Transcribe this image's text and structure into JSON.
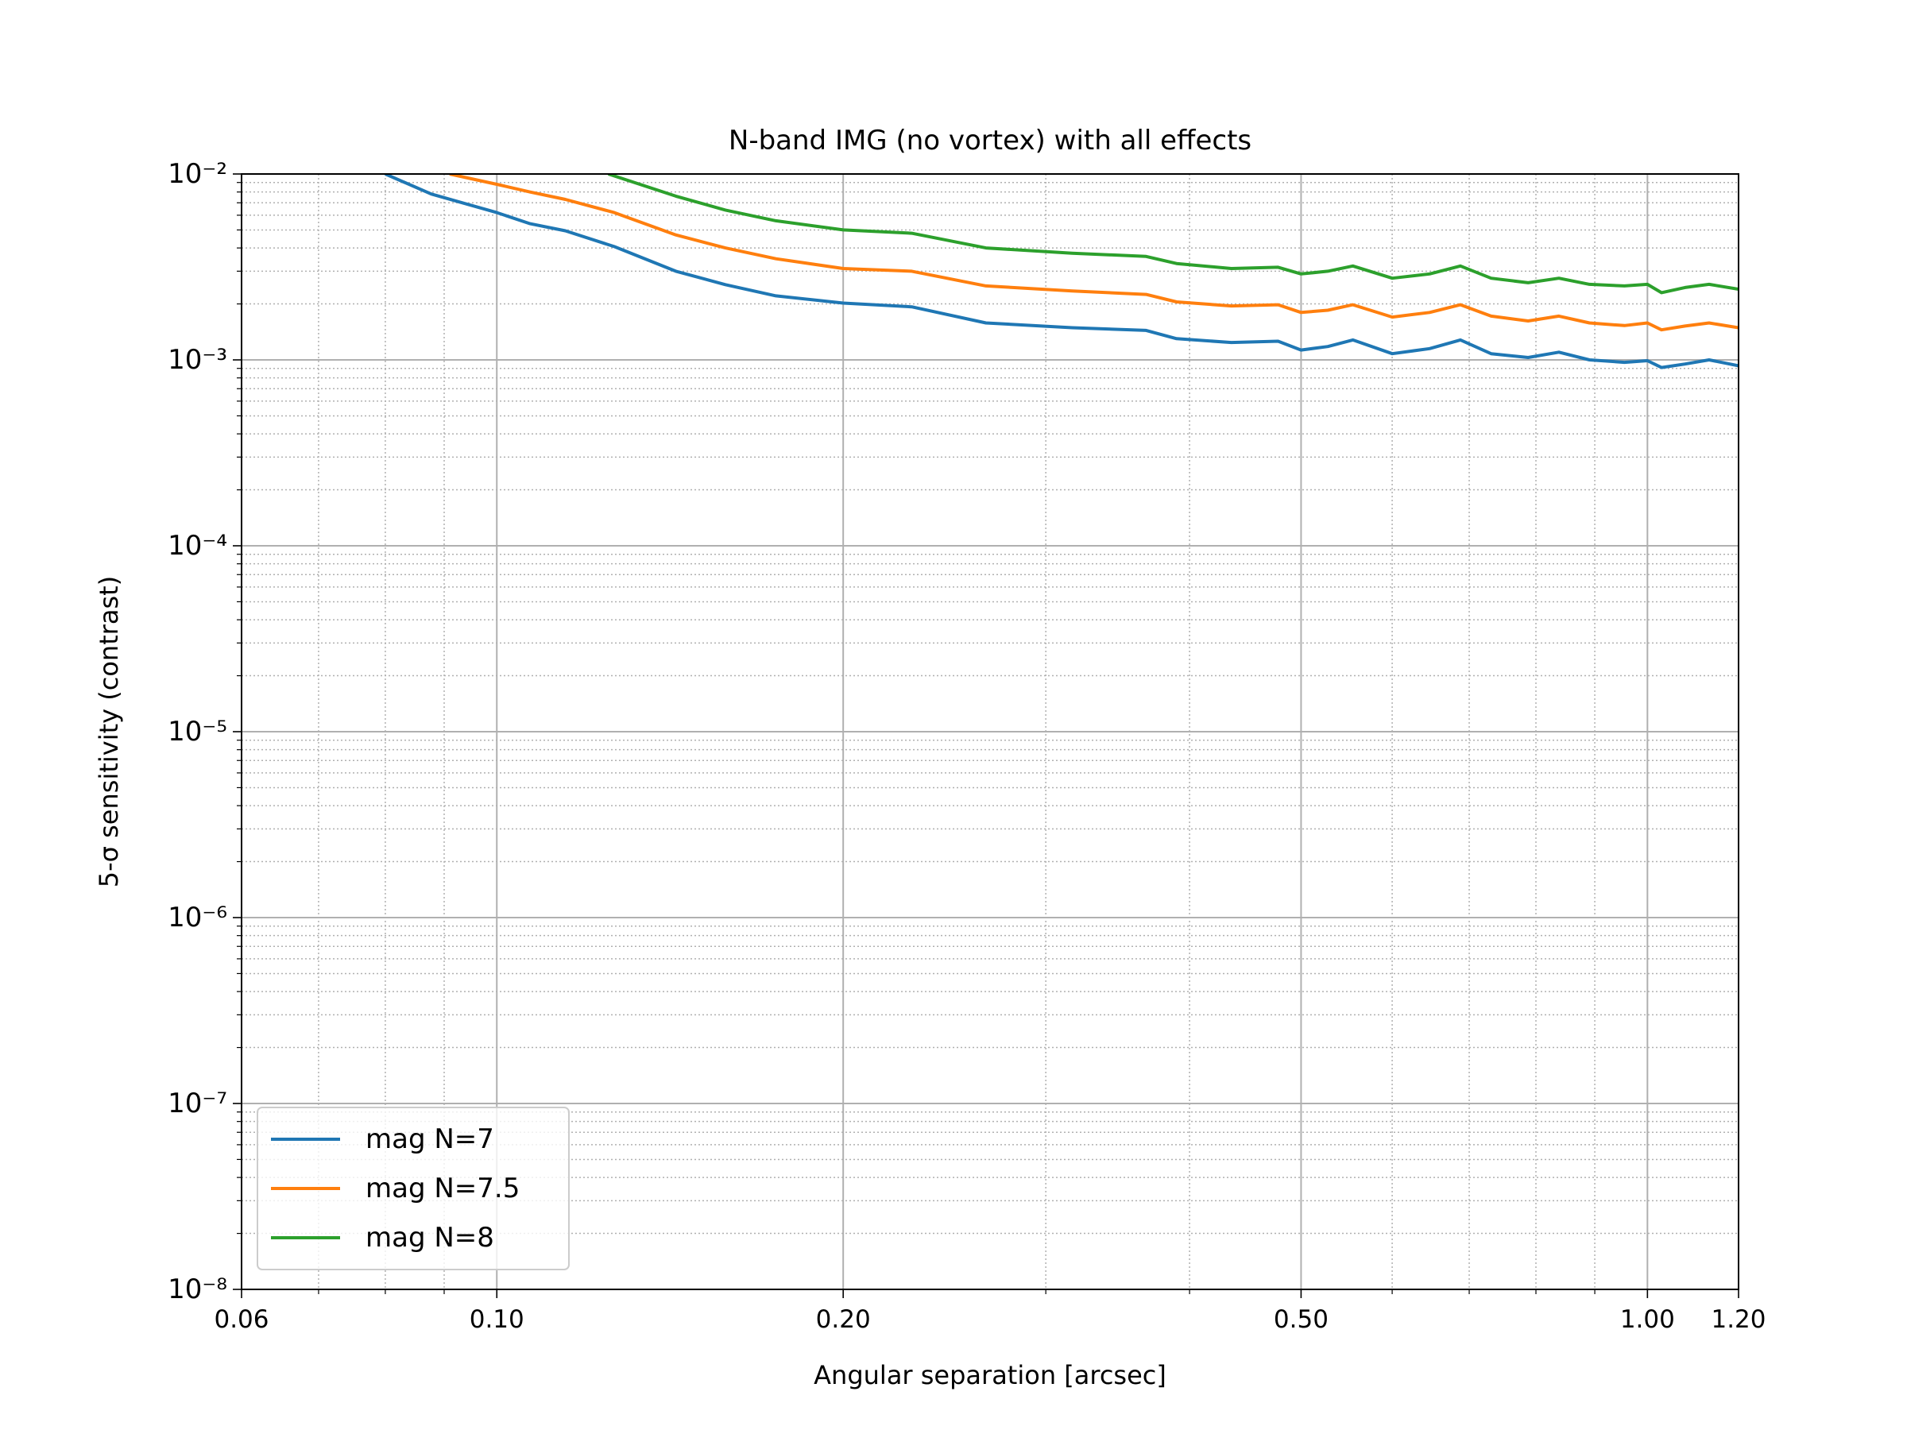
{
  "chart_data": {
    "type": "line",
    "title": "N-band IMG (no vortex) with all effects",
    "x_label": "Angular separation [arcsec]",
    "y_label": "5-σ sensitivity (contrast)",
    "xscale": "log",
    "yscale": "log",
    "grid": true,
    "legend_loc": "lower left",
    "xlim": [
      0.06,
      1.2
    ],
    "ylim": [
      1e-08,
      0.01
    ],
    "xticks": [
      0.06,
      {
        "value": 0.1,
        "label": "0.10"
      },
      {
        "value": 0.2,
        "label": "0.20"
      },
      {
        "value": 0.5,
        "label": "0.50"
      },
      {
        "value": 1,
        "label": "1.00"
      },
      {
        "value": 1.2,
        "label": "1.20"
      }
    ],
    "yticks": [
      {
        "value": 1e-08,
        "label": "10⁻⁸"
      },
      {
        "value": 1e-07,
        "label": "10⁻⁷"
      },
      {
        "value": 1e-06,
        "label": "10⁻⁶"
      },
      {
        "value": 1e-05,
        "label": "10⁻⁵"
      },
      {
        "value": 0.0001,
        "label": "10⁻⁴"
      },
      {
        "value": 0.001,
        "label": "10⁻³"
      },
      {
        "value": 0.01,
        "label": "10⁻²"
      }
    ],
    "xminorticks": [
      0.07,
      0.08,
      0.09,
      0.3,
      0.4,
      0.6,
      0.7,
      0.8,
      0.9
    ],
    "yminorticks": [
      2e-08,
      3e-08,
      4e-08,
      5e-08,
      6e-08,
      7e-08,
      8e-08,
      9e-08,
      2e-07,
      3e-07,
      4e-07,
      5e-07,
      6e-07,
      7e-07,
      8e-07,
      9e-07,
      2e-06,
      3e-06,
      4e-06,
      5e-06,
      6e-06,
      7e-06,
      8e-06,
      9e-06,
      2e-05,
      3e-05,
      4e-05,
      5e-05,
      6e-05,
      7e-05,
      8e-05,
      9e-05,
      0.0002,
      0.0003,
      0.0004,
      0.0005,
      0.0006,
      0.0007,
      0.0008,
      0.0009,
      0.002,
      0.003,
      0.004,
      0.005,
      0.006,
      0.007,
      0.008,
      0.009
    ],
    "series": [
      {
        "name": "mag N=7",
        "color": "#1f77b4",
        "x": [
          0.08,
          0.0877,
          0.1,
          0.1069,
          0.1147,
          0.1265,
          0.1431,
          0.158,
          0.1748,
          0.2,
          0.2294,
          0.2661,
          0.3163,
          0.3667,
          0.3897,
          0.4349,
          0.4775,
          0.5,
          0.5275,
          0.5546,
          0.6001,
          0.6467,
          0.6878,
          0.7314,
          0.7876,
          0.8376,
          0.8905,
          0.9551,
          1.0,
          1.0284,
          1.0783,
          1.1312,
          1.2
        ],
        "values": [
          0.01,
          0.0078,
          0.0062,
          0.0054,
          0.00495,
          0.00407,
          0.003,
          0.00254,
          0.00221,
          0.00202,
          0.00193,
          0.00158,
          0.00149,
          0.00144,
          0.0013,
          0.00124,
          0.00126,
          0.00113,
          0.00118,
          0.00128,
          0.00108,
          0.00115,
          0.00128,
          0.00108,
          0.00103,
          0.0011,
          0.001,
          0.00097,
          0.00099,
          0.00091,
          0.00095,
          0.001,
          0.00093
        ]
      },
      {
        "name": "mag N=7.5",
        "color": "#ff7f0e",
        "x": [
          0.091,
          0.1,
          0.1069,
          0.1147,
          0.1265,
          0.1431,
          0.158,
          0.1748,
          0.2,
          0.2294,
          0.2661,
          0.3163,
          0.3667,
          0.3897,
          0.4349,
          0.4775,
          0.5,
          0.5275,
          0.5546,
          0.6001,
          0.6467,
          0.6878,
          0.7314,
          0.7876,
          0.8376,
          0.8905,
          0.9551,
          1.0,
          1.0284,
          1.0783,
          1.1312,
          1.2
        ],
        "values": [
          0.01,
          0.0088,
          0.008,
          0.0073,
          0.0062,
          0.0047,
          0.004,
          0.0035,
          0.0031,
          0.003,
          0.0025,
          0.00235,
          0.00225,
          0.00205,
          0.00195,
          0.00198,
          0.0018,
          0.00185,
          0.00198,
          0.0017,
          0.0018,
          0.00198,
          0.00172,
          0.00162,
          0.00172,
          0.00158,
          0.00153,
          0.00158,
          0.00145,
          0.00152,
          0.00158,
          0.00149
        ]
      },
      {
        "name": "mag N=8",
        "color": "#2ca02c",
        "x": [
          0.125,
          0.1431,
          0.158,
          0.1748,
          0.2,
          0.2294,
          0.2661,
          0.3163,
          0.3667,
          0.3897,
          0.4349,
          0.4775,
          0.5,
          0.5275,
          0.5546,
          0.6001,
          0.6467,
          0.6878,
          0.7314,
          0.7876,
          0.8376,
          0.8905,
          0.9551,
          1.0,
          1.0284,
          1.0783,
          1.1312,
          1.2
        ],
        "values": [
          0.01,
          0.0076,
          0.0064,
          0.0056,
          0.005,
          0.0048,
          0.004,
          0.00375,
          0.0036,
          0.0033,
          0.0031,
          0.00315,
          0.0029,
          0.003,
          0.0032,
          0.00275,
          0.0029,
          0.0032,
          0.00275,
          0.0026,
          0.00275,
          0.00255,
          0.0025,
          0.00255,
          0.0023,
          0.00245,
          0.00255,
          0.0024
        ]
      }
    ]
  }
}
